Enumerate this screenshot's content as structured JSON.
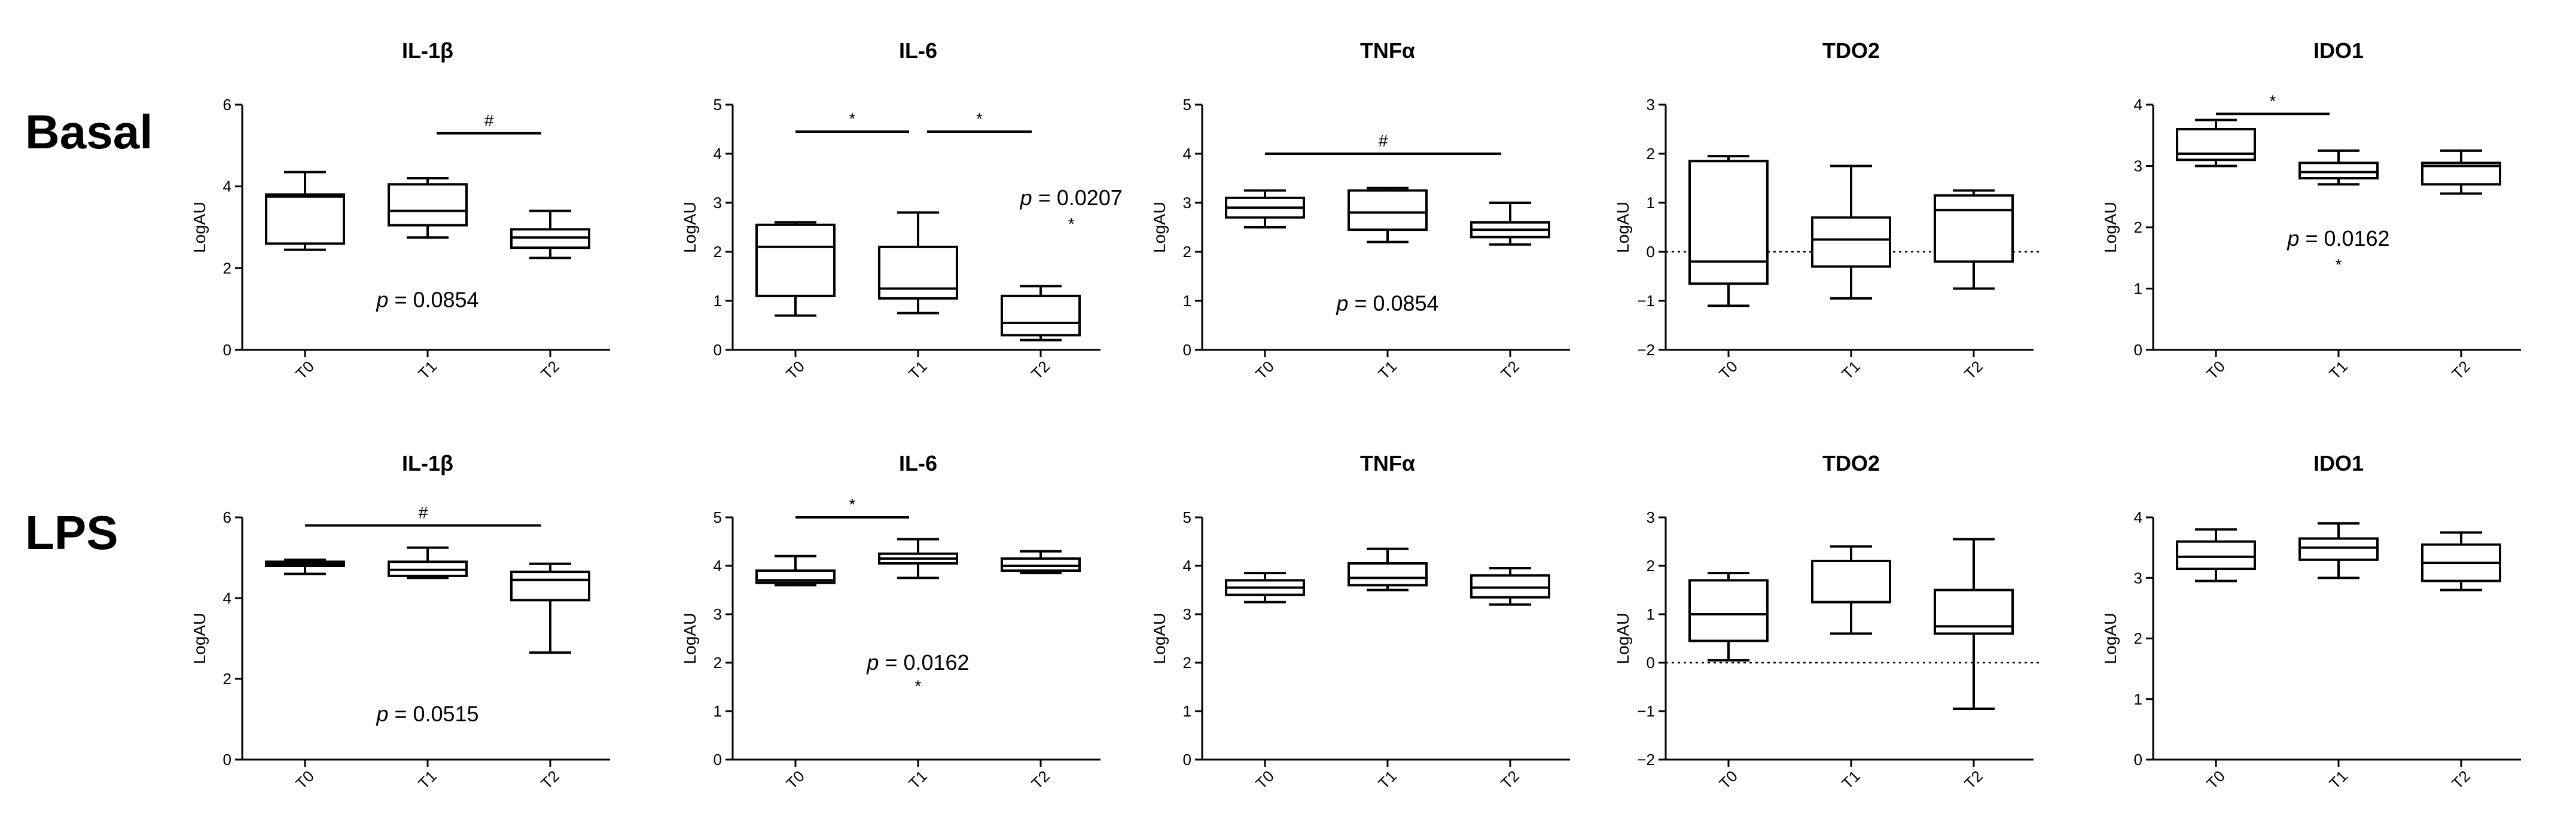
{
  "figure": {
    "row_labels": [
      "Basal",
      "LPS"
    ],
    "box_style": {
      "stroke": "#000000",
      "fill": "#ffffff"
    }
  },
  "chart_data": [
    {
      "type": "box",
      "row": "Basal",
      "title": "IL-1β",
      "ylabel": "LogAU",
      "ylim": [
        0,
        6
      ],
      "yticks": [
        0,
        2,
        4,
        6
      ],
      "categories": [
        "T0",
        "T1",
        "T2"
      ],
      "boxes": [
        {
          "min": 2.45,
          "q1": 2.6,
          "median": 3.75,
          "q3": 3.8,
          "max": 4.35
        },
        {
          "min": 2.75,
          "q1": 3.05,
          "median": 3.4,
          "q3": 4.05,
          "max": 4.2
        },
        {
          "min": 2.25,
          "q1": 2.5,
          "median": 2.75,
          "q3": 2.95,
          "max": 3.4
        }
      ],
      "p_text": {
        "italic": "p",
        "rest": " = 0.0854",
        "x": 1.0,
        "y": 1.05
      },
      "brackets": [
        {
          "from": 1,
          "to": 2,
          "y": 5.3,
          "label": "#"
        }
      ],
      "markers": []
    },
    {
      "type": "box",
      "row": "Basal",
      "title": "IL-6",
      "ylabel": "LogAU",
      "ylim": [
        0,
        5
      ],
      "yticks": [
        0,
        1,
        2,
        3,
        4,
        5
      ],
      "categories": [
        "T0",
        "T1",
        "T2"
      ],
      "boxes": [
        {
          "min": 0.7,
          "q1": 1.1,
          "median": 2.1,
          "q3": 2.55,
          "max": 2.6
        },
        {
          "min": 0.75,
          "q1": 1.05,
          "median": 1.25,
          "q3": 2.1,
          "max": 2.8
        },
        {
          "min": 0.2,
          "q1": 0.3,
          "median": 0.55,
          "q3": 1.1,
          "max": 1.3
        }
      ],
      "p_text": {
        "italic": "p",
        "rest": " = 0.0207",
        "x": 2.25,
        "y": 2.95
      },
      "brackets": [
        {
          "from": 0,
          "to": 1,
          "y": 4.45,
          "label": "*"
        },
        {
          "from": 1,
          "to": 2,
          "y": 4.45,
          "label": "*"
        }
      ],
      "markers": [
        {
          "x": 2.25,
          "y": 2.45,
          "label": "*"
        }
      ]
    },
    {
      "type": "box",
      "row": "Basal",
      "title": "TNFα",
      "ylabel": "LogAU",
      "ylim": [
        0,
        5
      ],
      "yticks": [
        0,
        1,
        2,
        3,
        4,
        5
      ],
      "categories": [
        "T0",
        "T1",
        "T2"
      ],
      "boxes": [
        {
          "min": 2.5,
          "q1": 2.7,
          "median": 2.9,
          "q3": 3.1,
          "max": 3.25
        },
        {
          "min": 2.2,
          "q1": 2.45,
          "median": 2.8,
          "q3": 3.25,
          "max": 3.3
        },
        {
          "min": 2.15,
          "q1": 2.3,
          "median": 2.45,
          "q3": 2.6,
          "max": 3.0
        }
      ],
      "p_text": {
        "italic": "p",
        "rest": " = 0.0854",
        "x": 1.0,
        "y": 0.8
      },
      "brackets": [
        {
          "from": 0,
          "to": 2,
          "y": 4.0,
          "label": "#"
        }
      ],
      "markers": []
    },
    {
      "type": "box",
      "row": "Basal",
      "title": "TDO2",
      "ylabel": "LogAU",
      "ylim": [
        -2,
        3
      ],
      "yticks": [
        -2,
        -1,
        0,
        1,
        2,
        3
      ],
      "zero_line": true,
      "categories": [
        "T0",
        "T1",
        "T2"
      ],
      "boxes": [
        {
          "min": -1.1,
          "q1": -0.65,
          "median": -0.2,
          "q3": 1.85,
          "max": 1.95
        },
        {
          "min": -0.95,
          "q1": -0.3,
          "median": 0.25,
          "q3": 0.7,
          "max": 1.75
        },
        {
          "min": -0.75,
          "q1": -0.2,
          "median": 0.85,
          "q3": 1.15,
          "max": 1.25
        }
      ],
      "brackets": [],
      "markers": []
    },
    {
      "type": "box",
      "row": "Basal",
      "title": "IDO1",
      "ylabel": "LogAU",
      "ylim": [
        0,
        4
      ],
      "yticks": [
        0,
        1,
        2,
        3,
        4
      ],
      "categories": [
        "T0",
        "T1",
        "T2"
      ],
      "boxes": [
        {
          "min": 3.0,
          "q1": 3.1,
          "median": 3.2,
          "q3": 3.6,
          "max": 3.75
        },
        {
          "min": 2.7,
          "q1": 2.8,
          "median": 2.9,
          "q3": 3.05,
          "max": 3.25
        },
        {
          "min": 2.55,
          "q1": 2.7,
          "median": 3.0,
          "q3": 3.05,
          "max": 3.25
        }
      ],
      "p_text": {
        "italic": "p",
        "rest": " = 0.0162",
        "x": 1.0,
        "y": 1.7
      },
      "brackets": [
        {
          "from": 0,
          "to": 1,
          "y": 3.85,
          "label": "*"
        }
      ],
      "markers": [
        {
          "x": 1.0,
          "y": 1.3,
          "label": "*"
        }
      ]
    },
    {
      "type": "box",
      "row": "LPS",
      "title": "IL-1β",
      "ylabel": "LogAU",
      "ylim": [
        0,
        6
      ],
      "yticks": [
        0,
        2,
        4,
        6
      ],
      "categories": [
        "T0",
        "T1",
        "T2"
      ],
      "boxes": [
        {
          "min": 4.6,
          "q1": 4.8,
          "median": 4.85,
          "q3": 4.9,
          "max": 4.95
        },
        {
          "min": 4.5,
          "q1": 4.55,
          "median": 4.7,
          "q3": 4.9,
          "max": 5.25
        },
        {
          "min": 2.65,
          "q1": 3.95,
          "median": 4.45,
          "q3": 4.65,
          "max": 4.85
        }
      ],
      "p_text": {
        "italic": "p",
        "rest": " = 0.0515",
        "x": 1.0,
        "y": 0.95
      },
      "brackets": [
        {
          "from": 0,
          "to": 2,
          "y": 5.8,
          "label": "#"
        }
      ],
      "markers": []
    },
    {
      "type": "box",
      "row": "LPS",
      "title": "IL-6",
      "ylabel": "LogAU",
      "ylim": [
        0,
        5
      ],
      "yticks": [
        0,
        1,
        2,
        3,
        4,
        5
      ],
      "categories": [
        "T0",
        "T1",
        "T2"
      ],
      "boxes": [
        {
          "min": 3.6,
          "q1": 3.65,
          "median": 3.7,
          "q3": 3.9,
          "max": 4.2
        },
        {
          "min": 3.75,
          "q1": 4.05,
          "median": 4.15,
          "q3": 4.25,
          "max": 4.55
        },
        {
          "min": 3.85,
          "q1": 3.9,
          "median": 4.0,
          "q3": 4.15,
          "max": 4.3
        }
      ],
      "p_text": {
        "italic": "p",
        "rest": " = 0.0162",
        "x": 1.0,
        "y": 1.85
      },
      "brackets": [
        {
          "from": 0,
          "to": 1,
          "y": 5.0,
          "label": "*"
        }
      ],
      "markers": [
        {
          "x": 1.0,
          "y": 1.4,
          "label": "*"
        }
      ]
    },
    {
      "type": "box",
      "row": "LPS",
      "title": "TNFα",
      "ylabel": "LogAU",
      "ylim": [
        0,
        5
      ],
      "yticks": [
        0,
        1,
        2,
        3,
        4,
        5
      ],
      "categories": [
        "T0",
        "T1",
        "T2"
      ],
      "boxes": [
        {
          "min": 3.25,
          "q1": 3.4,
          "median": 3.55,
          "q3": 3.7,
          "max": 3.85
        },
        {
          "min": 3.5,
          "q1": 3.6,
          "median": 3.75,
          "q3": 4.05,
          "max": 4.35
        },
        {
          "min": 3.2,
          "q1": 3.35,
          "median": 3.55,
          "q3": 3.8,
          "max": 3.95
        }
      ],
      "brackets": [],
      "markers": []
    },
    {
      "type": "box",
      "row": "LPS",
      "title": "TDO2",
      "ylabel": "LogAU",
      "ylim": [
        -2,
        3
      ],
      "yticks": [
        -2,
        -1,
        0,
        1,
        2,
        3
      ],
      "zero_line": true,
      "categories": [
        "T0",
        "T1",
        "T2"
      ],
      "boxes": [
        {
          "min": 0.05,
          "q1": 0.45,
          "median": 1.0,
          "q3": 1.7,
          "max": 1.85
        },
        {
          "min": 0.6,
          "q1": 1.25,
          "median": 1.25,
          "q3": 2.1,
          "max": 2.4
        },
        {
          "min": -0.95,
          "q1": 0.6,
          "median": 0.75,
          "q3": 1.5,
          "max": 2.55
        }
      ],
      "brackets": [],
      "markers": []
    },
    {
      "type": "box",
      "row": "LPS",
      "title": "IDO1",
      "ylabel": "LogAU",
      "ylim": [
        0,
        4
      ],
      "yticks": [
        0,
        1,
        2,
        3,
        4
      ],
      "categories": [
        "T0",
        "T1",
        "T2"
      ],
      "boxes": [
        {
          "min": 2.95,
          "q1": 3.15,
          "median": 3.35,
          "q3": 3.6,
          "max": 3.8
        },
        {
          "min": 3.0,
          "q1": 3.3,
          "median": 3.5,
          "q3": 3.65,
          "max": 3.9
        },
        {
          "min": 2.8,
          "q1": 2.95,
          "median": 3.25,
          "q3": 3.55,
          "max": 3.75
        }
      ],
      "brackets": [],
      "markers": []
    }
  ]
}
